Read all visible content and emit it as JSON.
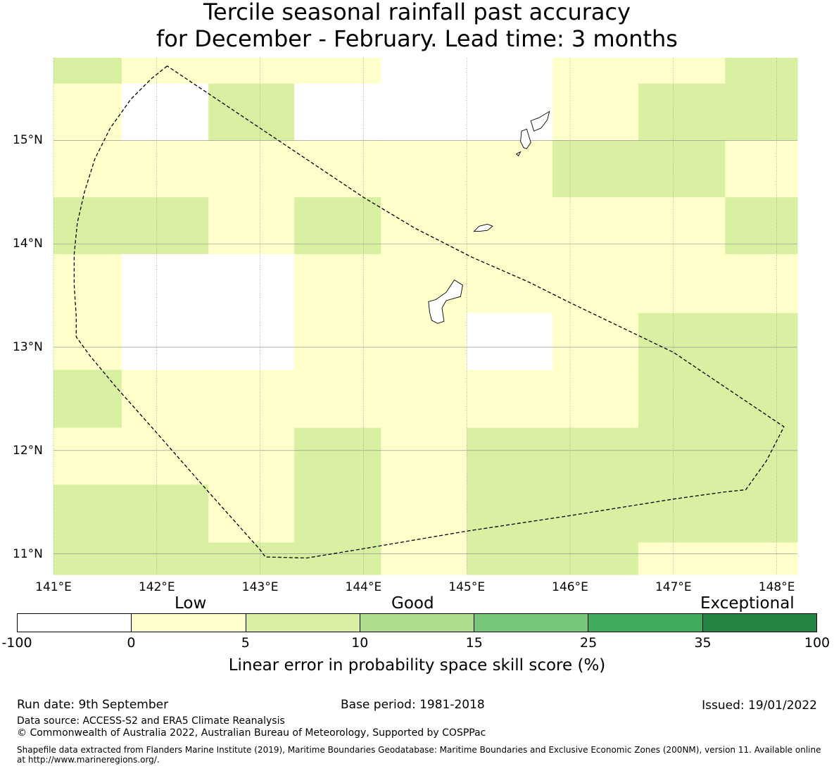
{
  "title": {
    "line1": "Tercile seasonal rainfall past accuracy",
    "line2": "for December - February. Lead time: 3 months"
  },
  "map": {
    "lon_range": [
      141.0,
      148.2
    ],
    "lat_range": [
      10.8,
      15.8
    ],
    "lon_ticks": [
      "141°E",
      "142°E",
      "143°E",
      "144°E",
      "145°E",
      "146°E",
      "147°E",
      "148°E"
    ],
    "lat_ticks": [
      "15°N",
      "14°N",
      "13°N",
      "12°N",
      "11°N"
    ],
    "grid_cell_columns_lon": [
      141.0,
      141.66,
      142.5,
      143.33,
      144.17,
      145.0,
      145.83,
      146.66,
      147.5,
      148.2
    ],
    "grid_cell_rows_lat": [
      15.8,
      15.55,
      15.0,
      14.45,
      13.9,
      13.33,
      12.78,
      12.22,
      11.67,
      11.11,
      10.8
    ],
    "skill_category_grid": [
      [
        2,
        1,
        1,
        1,
        0,
        0,
        1,
        1,
        2
      ],
      [
        1,
        0,
        2,
        0,
        0,
        0,
        1,
        2,
        2
      ],
      [
        1,
        1,
        1,
        1,
        1,
        1,
        2,
        2,
        1
      ],
      [
        2,
        2,
        1,
        2,
        1,
        1,
        1,
        1,
        2
      ],
      [
        1,
        0,
        0,
        1,
        1,
        1,
        1,
        1,
        1
      ],
      [
        1,
        0,
        0,
        1,
        1,
        0,
        1,
        2,
        2
      ],
      [
        2,
        1,
        1,
        1,
        1,
        1,
        1,
        2,
        2
      ],
      [
        1,
        1,
        1,
        2,
        1,
        2,
        2,
        2,
        2
      ],
      [
        2,
        2,
        1,
        2,
        1,
        2,
        2,
        2,
        2
      ],
      [
        2,
        2,
        2,
        2,
        1,
        2,
        2,
        1,
        1
      ]
    ],
    "category_colors": [
      "#ffffff",
      "#ffffcc",
      "#d9f0a3"
    ],
    "eez_boundary_lonlat": [
      [
        142.1,
        15.72
      ],
      [
        141.95,
        15.6
      ],
      [
        141.75,
        15.4
      ],
      [
        141.55,
        15.12
      ],
      [
        141.4,
        14.82
      ],
      [
        141.3,
        14.5
      ],
      [
        141.23,
        14.2
      ],
      [
        141.2,
        13.9
      ],
      [
        141.2,
        13.6
      ],
      [
        141.22,
        13.3
      ],
      [
        141.22,
        13.1
      ],
      [
        141.35,
        12.92
      ],
      [
        141.6,
        12.62
      ],
      [
        142.0,
        12.17
      ],
      [
        142.5,
        11.6
      ],
      [
        143.0,
        11.04
      ],
      [
        143.05,
        10.97
      ],
      [
        143.45,
        10.96
      ],
      [
        144.0,
        11.05
      ],
      [
        145.0,
        11.22
      ],
      [
        146.0,
        11.37
      ],
      [
        147.0,
        11.53
      ],
      [
        147.5,
        11.6
      ],
      [
        147.7,
        11.62
      ],
      [
        147.9,
        11.9
      ],
      [
        148.07,
        12.23
      ],
      [
        147.0,
        12.95
      ],
      [
        146.0,
        13.43
      ],
      [
        145.6,
        13.63
      ],
      [
        145.05,
        13.87
      ],
      [
        144.5,
        14.15
      ],
      [
        144.0,
        14.45
      ],
      [
        142.1,
        15.72
      ]
    ],
    "islands_lonlat": [
      [
        [
          145.62,
          15.19
        ],
        [
          145.7,
          15.22
        ],
        [
          145.8,
          15.28
        ],
        [
          145.78,
          15.2
        ],
        [
          145.72,
          15.12
        ],
        [
          145.65,
          15.09
        ],
        [
          145.62,
          15.19
        ]
      ],
      [
        [
          145.53,
          15.09
        ],
        [
          145.58,
          15.11
        ],
        [
          145.62,
          14.98
        ],
        [
          145.58,
          14.92
        ],
        [
          145.55,
          14.93
        ],
        [
          145.52,
          14.99
        ],
        [
          145.53,
          15.09
        ]
      ],
      [
        [
          145.48,
          14.87
        ],
        [
          145.52,
          14.89
        ],
        [
          145.5,
          14.85
        ],
        [
          145.48,
          14.87
        ]
      ],
      [
        [
          145.07,
          14.12
        ],
        [
          145.12,
          14.17
        ],
        [
          145.2,
          14.19
        ],
        [
          145.25,
          14.17
        ],
        [
          145.2,
          14.13
        ],
        [
          145.12,
          14.12
        ],
        [
          145.07,
          14.12
        ]
      ],
      [
        [
          144.88,
          13.65
        ],
        [
          144.96,
          13.6
        ],
        [
          144.94,
          13.49
        ],
        [
          144.8,
          13.45
        ],
        [
          144.76,
          13.38
        ],
        [
          144.78,
          13.25
        ],
        [
          144.72,
          13.23
        ],
        [
          144.66,
          13.26
        ],
        [
          144.64,
          13.34
        ],
        [
          144.63,
          13.44
        ],
        [
          144.7,
          13.46
        ],
        [
          144.8,
          13.53
        ],
        [
          144.88,
          13.65
        ]
      ]
    ]
  },
  "colorbar": {
    "category_words": [
      "Low",
      "Good",
      "Exceptional"
    ],
    "ticks": [
      "-100",
      "0",
      "5",
      "10",
      "15",
      "25",
      "35",
      "100"
    ],
    "colors": [
      "#ffffff",
      "#ffffcc",
      "#d9f0a3",
      "#addd8e",
      "#78c679",
      "#41ab5d",
      "#238443"
    ],
    "label": "Linear error in probability space skill score (%)"
  },
  "footer": {
    "run_date": "Run date: 9th September",
    "base_period": "Base period: 1981-2018",
    "issued": "Issued: 19/01/2022",
    "data_source": "Data source: ACCESS-S2 and ERA5 Climate Reanalysis",
    "copyright": "© Commonwealth of Australia 2022, Australian Bureau of Meteorology, Supported by COSPPac",
    "shapefile_line1": "Shapefile data extracted from Flanders Marine Institute (2019), Maritime Boundaries Geodatabase: Maritime Boundaries and Exclusive Economic Zones (200NM), version 11. Available online",
    "shapefile_line2": "at http://www.marineregions.org/."
  }
}
